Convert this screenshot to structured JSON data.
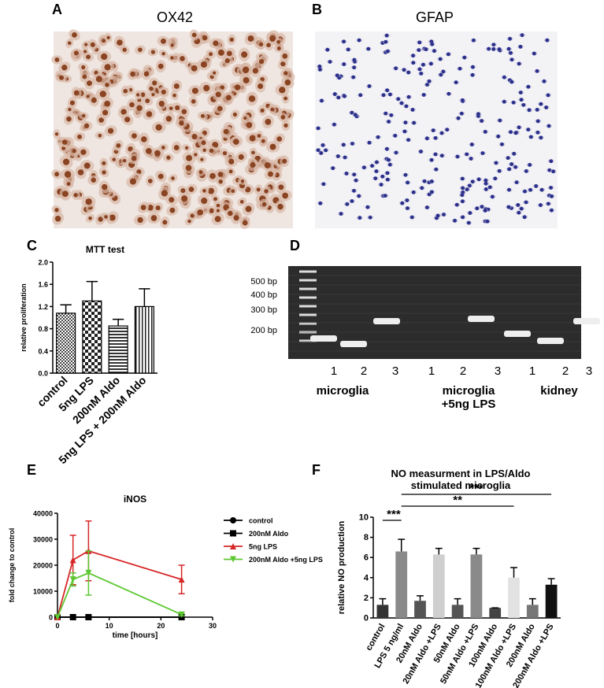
{
  "panel_labels": [
    "A",
    "B",
    "C",
    "D",
    "E",
    "F"
  ],
  "images": [
    {
      "title": "OX42"
    },
    {
      "title": "GFAP"
    }
  ],
  "gel": {
    "markers": [
      "500 bp",
      "400 bp",
      "300 bp",
      "200 bp"
    ],
    "lanes": [
      "1",
      "2",
      "3",
      "1",
      "2",
      "3",
      "1",
      "2",
      "3"
    ],
    "groups": [
      "microglia",
      "microglia +5ng LPS",
      "kidney"
    ]
  },
  "chart_data": [
    {
      "type": "bar",
      "title": "MTT test",
      "y_label": "relative proliferation",
      "categories": [
        "control",
        "5ng LPS",
        "200nM Aldo",
        "5ng LPS + 200nM Aldo"
      ],
      "values": [
        1.08,
        1.3,
        0.85,
        1.2
      ],
      "errors": [
        0.15,
        0.35,
        0.12,
        0.32
      ],
      "color": "#000000",
      "ylim": [
        0,
        2.0
      ],
      "yticks": [
        {
          "value": 0,
          "label": "0.0"
        },
        {
          "value": 0.4,
          "label": "0.4"
        },
        {
          "value": 0.8,
          "label": "0.8"
        },
        {
          "value": 1.2,
          "label": "1.2"
        },
        {
          "value": 1.6,
          "label": "1.6"
        },
        {
          "value": 2.0,
          "label": "2.0"
        }
      ]
    },
    {
      "type": "line",
      "title": "iNOS",
      "x_label": "time [hours]",
      "y_label": "fold change to control",
      "x": [
        0,
        3,
        6,
        24
      ],
      "xlim": [
        0,
        30
      ],
      "xticks": [
        0,
        10,
        20,
        30
      ],
      "ylim": [
        0,
        40000
      ],
      "yticks": [
        0,
        10000,
        20000,
        30000,
        40000
      ],
      "legend": "right",
      "series": [
        {
          "name": "control",
          "color": "#000000",
          "marker": "circle",
          "values": [
            0,
            0,
            0,
            0
          ],
          "errors": [
            0,
            0,
            0,
            0
          ]
        },
        {
          "name": "200nM Aldo",
          "color": "#000000",
          "marker": "square",
          "values": [
            0,
            0,
            0,
            0
          ],
          "errors": [
            0,
            0,
            0,
            0
          ]
        },
        {
          "name": "5ng LPS",
          "color": "#d62728",
          "marker": "triangle-up",
          "values": [
            0,
            22000,
            25500,
            14500
          ],
          "errors": [
            0,
            9500,
            11500,
            5500
          ]
        },
        {
          "name": "200nM Aldo +5ng LPS",
          "color": "#5dc732",
          "marker": "triangle-down",
          "values": [
            0,
            14500,
            17000,
            1000
          ],
          "errors": [
            0,
            2500,
            8500,
            500
          ]
        }
      ]
    },
    {
      "type": "bar",
      "title": "NO measurment in LPS/Aldo stimulated microglia",
      "y_label": "relative NO production",
      "categories": [
        "control",
        "LPS 5 ng/ml",
        "20nM Aldo",
        "20nM Aldo +LPS",
        "50nM Aldo",
        "50nM Aldo +LPS",
        "100nM Aldo",
        "100nM Aldo +LPS",
        "200nM Aldo",
        "200nM Aldo +LPS"
      ],
      "values": [
        1.3,
        6.6,
        1.7,
        6.3,
        1.3,
        6.3,
        1.0,
        4.0,
        1.3,
        3.3
      ],
      "errors": [
        0.6,
        1.2,
        0.5,
        0.6,
        0.6,
        0.6,
        0,
        1.0,
        0.6,
        0.6
      ],
      "colors": [
        "#333333",
        "#8a8a8a",
        "#555555",
        "#cfcfcf",
        "#555555",
        "#8a8a8a",
        "#444444",
        "#e2e2e2",
        "#777777",
        "#111111"
      ],
      "ylim": [
        0,
        10
      ],
      "yticks": [
        0,
        2,
        4,
        6,
        8,
        10
      ],
      "annotations": [
        "***",
        "***",
        "**"
      ]
    }
  ]
}
